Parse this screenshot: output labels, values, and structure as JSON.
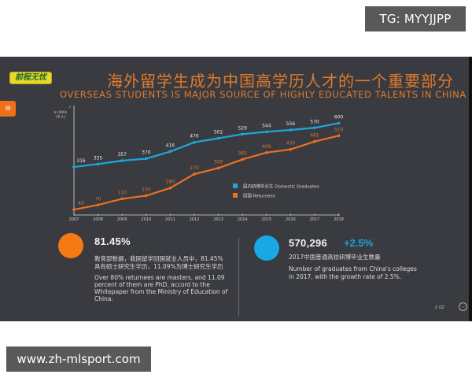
{
  "watermarks": {
    "top_right": "TG: MYYJJPP",
    "bottom_left": "www.zh-mlsport.com"
  },
  "slide": {
    "logo_text": "前程无忧",
    "page_tab_icon": "slide-tab-icon",
    "title_cn": "海外留学生成为中国高学历人才的一个重要部分",
    "title_en": "OVERSEAS STUDENTS IS  MAJOR SOURCE OF HIGHLY EDUCATED TALENTS IN CHINA",
    "page_number": "// 02",
    "next_icon": "arrow-right-circle-icon"
  },
  "chart_data": {
    "type": "line",
    "title": "海外留学生成为中国高学历人才的一个重要部分 / Overseas students is major source of highly educated talents in China",
    "ylabel": "In 000s (千人)",
    "xlabel": "",
    "x": [
      "2007",
      "2008",
      "2009",
      "2010",
      "2011",
      "2012",
      "2013",
      "2014",
      "2015",
      "2016",
      "2017",
      "2018"
    ],
    "series": [
      {
        "name": "国内研博毕业生 Domestic Graduates",
        "color": "#1ea6dc",
        "values": [
          316,
          335,
          357,
          370,
          416,
          476,
          502,
          529,
          544,
          556,
          570,
          600
        ]
      },
      {
        "name": "回国 Returnees",
        "color": "#ec6f22",
        "values": [
          40,
          70,
          110,
          130,
          180,
          270,
          309,
          365,
          409,
          430,
          481,
          519
        ]
      }
    ],
    "ylim": [
      0,
      650
    ],
    "grid": false,
    "legend_position": "lower-right inside plot"
  },
  "axis": {
    "y_arrow": "?",
    "y_unit_en": "In 000s",
    "y_unit_cn": "（千人）"
  },
  "legend": [
    {
      "label": "国内研博毕业生 Domestic Graduates",
      "color": "#1ea6dc"
    },
    {
      "label": "回国 Returnees",
      "color": "#ec6f22"
    }
  ],
  "stats": {
    "returnees": {
      "value": "81.45%",
      "cn_text_line1": "教育部数据，我国留学回国就业人员中，81.45%",
      "cn_text_line2": "具有硕士研究生学历，11.09%为博士研究生学历",
      "en_text_line1": "Over 80% returnees are masters, and 11.09",
      "en_text_line2": "percent of them are  PhD, accord to the",
      "en_text_line3": "Whitepaper from the Ministry of Education of",
      "en_text_line4": "China.",
      "color": "#f57a14"
    },
    "graduates": {
      "value": "570,296",
      "growth": "+2.5%",
      "cn_text": "2017中国普通高校研博毕业生数量",
      "en_text_line1": "Number of graduates from China's colleges",
      "en_text_line2": "in 2017, with the growth rate of 2.5%.",
      "color": "#18a8e4"
    }
  }
}
